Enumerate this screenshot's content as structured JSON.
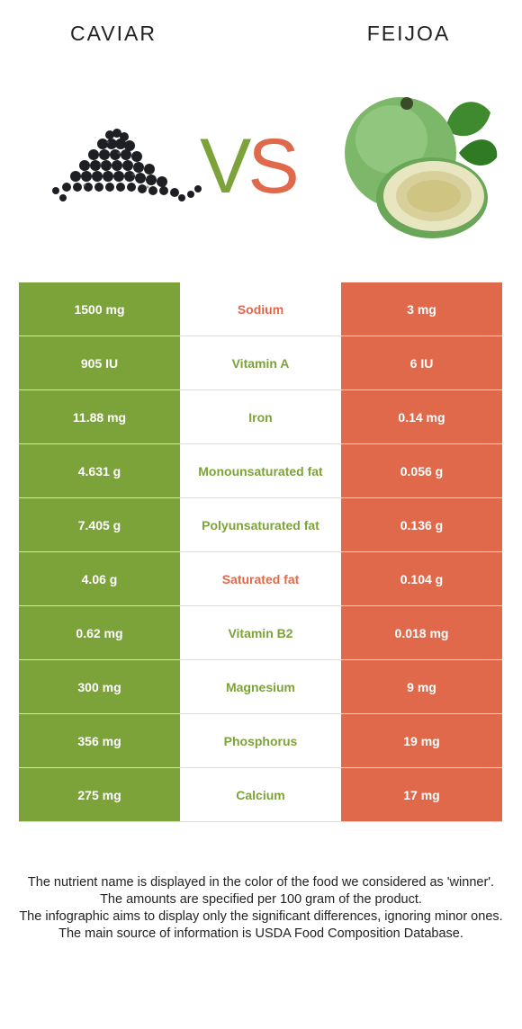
{
  "left_food": {
    "name": "CAVIAR",
    "icon": "caviar-pile-image"
  },
  "right_food": {
    "name": "FEIJOA",
    "icon": "feijoa-fruit-image"
  },
  "vs": {
    "v": "V",
    "s": "S"
  },
  "colors": {
    "left": "#7ca33a",
    "right": "#e1694b"
  },
  "rows": [
    {
      "left": "1500 mg",
      "nutrient": "Sodium",
      "right": "3 mg",
      "winner": "right"
    },
    {
      "left": "905 IU",
      "nutrient": "Vitamin A",
      "right": "6 IU",
      "winner": "left"
    },
    {
      "left": "11.88 mg",
      "nutrient": "Iron",
      "right": "0.14 mg",
      "winner": "left"
    },
    {
      "left": "4.631 g",
      "nutrient": "Monounsaturated fat",
      "right": "0.056 g",
      "winner": "left"
    },
    {
      "left": "7.405 g",
      "nutrient": "Polyunsaturated fat",
      "right": "0.136 g",
      "winner": "left"
    },
    {
      "left": "4.06 g",
      "nutrient": "Saturated fat",
      "right": "0.104 g",
      "winner": "right"
    },
    {
      "left": "0.62 mg",
      "nutrient": "Vitamin B2",
      "right": "0.018 mg",
      "winner": "left"
    },
    {
      "left": "300 mg",
      "nutrient": "Magnesium",
      "right": "9 mg",
      "winner": "left"
    },
    {
      "left": "356 mg",
      "nutrient": "Phosphorus",
      "right": "19 mg",
      "winner": "left"
    },
    {
      "left": "275 mg",
      "nutrient": "Calcium",
      "right": "17 mg",
      "winner": "left"
    }
  ],
  "footer": [
    "The nutrient name is displayed in the color of the food we considered as 'winner'.",
    "The amounts are specified per 100 gram of the product.",
    "The infographic aims to display only the significant differences, ignoring minor ones.",
    "The main source of information is USDA Food Composition Database."
  ]
}
